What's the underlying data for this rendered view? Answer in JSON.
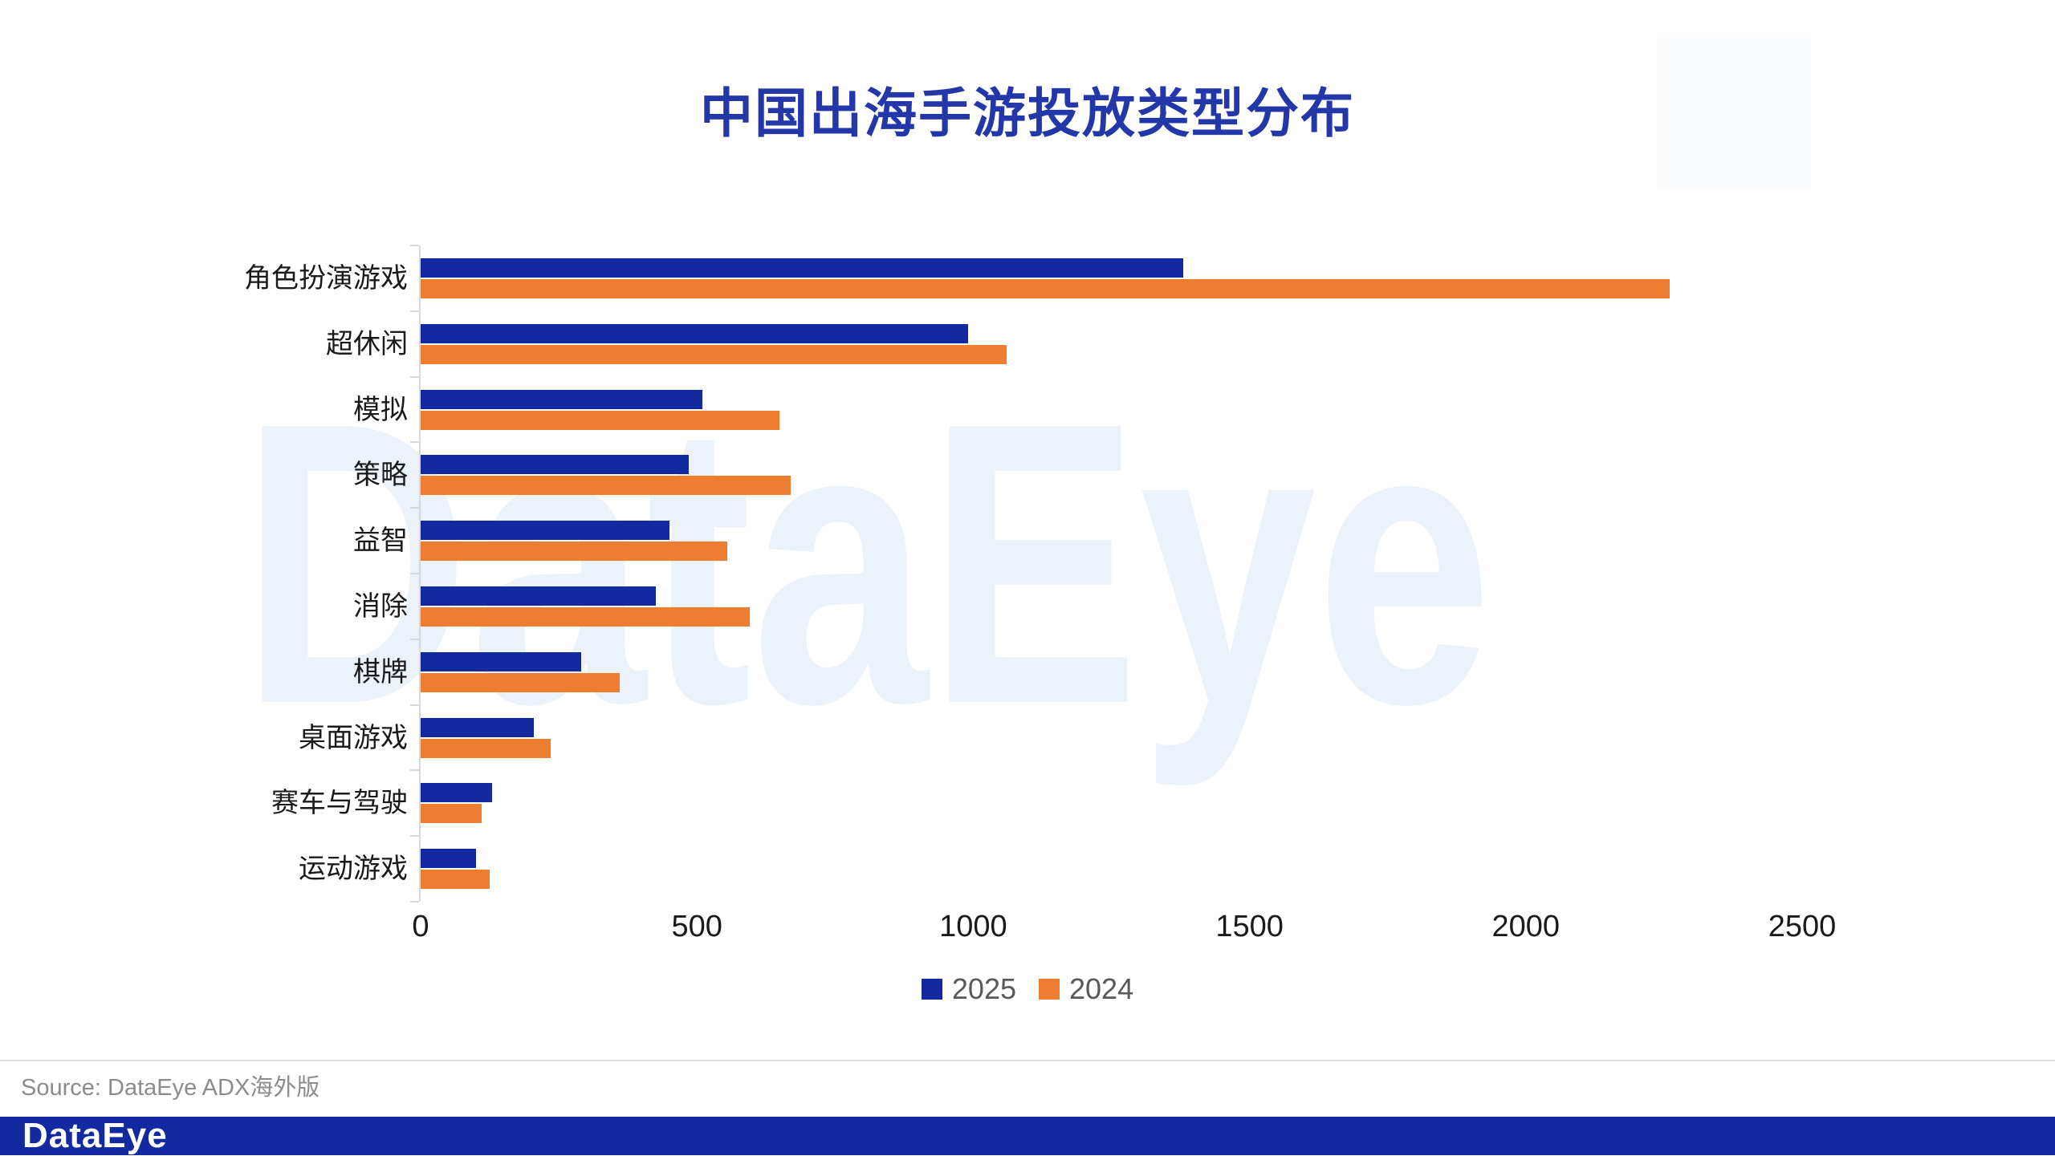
{
  "page": {
    "title": "中国出海手游投放类型分布",
    "watermark": "DataEye",
    "source": "Source: DataEye ADX海外版",
    "footer_logo": "DataEye"
  },
  "colors": {
    "bar_blue": "#1329A0",
    "bar_orange": "#ED7D31",
    "title_blue": "#2337A8",
    "footer_bar_blue": "#1329A0",
    "watermark_blue": "#EBF2FA",
    "axis_gray": "#D9D9D9",
    "legend_text_gray": "#595959",
    "label_dark": "#1A1A1A",
    "source_gray": "#8C8C8C"
  },
  "chart_data": {
    "type": "bar",
    "orientation": "horizontal",
    "title": "中国出海手游投放类型分布",
    "categories": [
      "角色扮演游戏",
      "超休闲",
      "模拟",
      "策略",
      "益智",
      "消除",
      "棋牌",
      "桌面游戏",
      "赛车与驾驶",
      "运动游戏"
    ],
    "series": [
      {
        "name": "2025",
        "color": "#1329A0",
        "values": [
          1380,
          990,
          510,
          485,
          450,
          425,
          290,
          205,
          130,
          100
        ]
      },
      {
        "name": "2024",
        "color": "#ED7D31",
        "values": [
          2260,
          1060,
          650,
          670,
          555,
          595,
          360,
          235,
          110,
          125
        ]
      }
    ],
    "xlabel": "",
    "ylabel": "",
    "xlim": [
      0,
      2500
    ],
    "xticks": [
      0,
      500,
      1000,
      1500,
      2000,
      2500
    ],
    "grid": false,
    "legend_position": "bottom"
  }
}
